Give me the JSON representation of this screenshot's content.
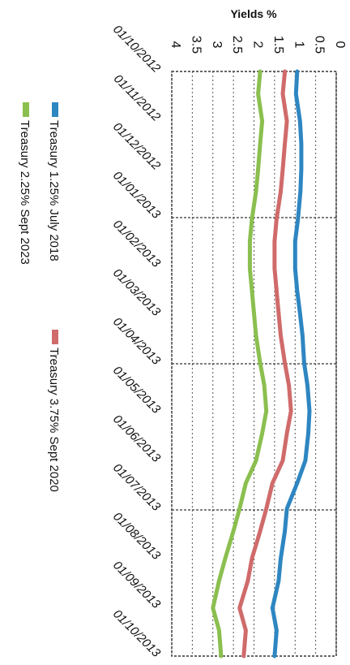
{
  "chart_data": {
    "type": "line",
    "orientation": "rotated-90-clockwise",
    "ylabel": "Yields %",
    "ylim": [
      0,
      4
    ],
    "y_ticks": [
      "0",
      "0.5",
      "1",
      "1.5",
      "2",
      "2.5",
      "3",
      "3.5",
      "4"
    ],
    "x_ticks": [
      "01/10/2012",
      "01/11/2012",
      "01/12/2012",
      "01/01/2013",
      "01/02/2013",
      "01/03/2013",
      "01/04/2013",
      "01/05/2013",
      "01/06/2013",
      "01/07/2013",
      "01/08/2013",
      "01/09/2013",
      "01/10/2013"
    ],
    "grid": "dashed",
    "legend_placement": "left",
    "series": [
      {
        "name": "Treasury 1.25% July 2018",
        "color": "#2e86c1",
        "dates": [
          "2012-10-01",
          "2012-10-15",
          "2012-11-01",
          "2012-11-15",
          "2012-12-01",
          "2012-12-15",
          "2013-01-01",
          "2013-01-15",
          "2013-02-01",
          "2013-02-15",
          "2013-03-01",
          "2013-03-15",
          "2013-04-01",
          "2013-04-15",
          "2013-05-01",
          "2013-05-15",
          "2013-06-01",
          "2013-06-15",
          "2013-07-01",
          "2013-07-15",
          "2013-08-01",
          "2013-08-15",
          "2013-09-01",
          "2013-09-15",
          "2013-10-01"
        ],
        "values": [
          0.95,
          0.98,
          0.88,
          0.85,
          0.85,
          0.87,
          0.93,
          1.0,
          1.0,
          0.95,
          0.88,
          0.82,
          0.78,
          0.7,
          0.65,
          0.68,
          0.75,
          0.95,
          1.2,
          1.25,
          1.35,
          1.4,
          1.55,
          1.45,
          1.5
        ]
      },
      {
        "name": "Treasury 3.75% Sept 2020",
        "color": "#d06b6b",
        "dates": [
          "2012-10-01",
          "2012-10-15",
          "2012-11-01",
          "2012-11-15",
          "2012-12-01",
          "2012-12-15",
          "2013-01-01",
          "2013-01-15",
          "2013-02-01",
          "2013-02-15",
          "2013-03-01",
          "2013-03-15",
          "2013-04-01",
          "2013-04-15",
          "2013-05-01",
          "2013-05-15",
          "2013-06-01",
          "2013-06-15",
          "2013-07-01",
          "2013-07-15",
          "2013-08-01",
          "2013-08-15",
          "2013-09-01",
          "2013-09-15",
          "2013-10-01"
        ],
        "values": [
          1.25,
          1.3,
          1.2,
          1.25,
          1.3,
          1.35,
          1.45,
          1.5,
          1.5,
          1.45,
          1.4,
          1.35,
          1.25,
          1.15,
          1.1,
          1.2,
          1.3,
          1.55,
          1.7,
          1.85,
          2.05,
          2.15,
          2.35,
          2.2,
          2.25
        ]
      },
      {
        "name": "Treasury 2.25% Sept 2023",
        "color": "#8bbf4f",
        "dates": [
          "2012-10-01",
          "2012-10-15",
          "2012-11-01",
          "2012-11-15",
          "2012-12-01",
          "2012-12-15",
          "2013-01-01",
          "2013-01-15",
          "2013-02-01",
          "2013-02-15",
          "2013-03-01",
          "2013-03-15",
          "2013-04-01",
          "2013-04-15",
          "2013-05-01",
          "2013-05-15",
          "2013-06-01",
          "2013-06-15",
          "2013-07-01",
          "2013-07-15",
          "2013-08-01",
          "2013-08-15",
          "2013-09-01",
          "2013-09-15",
          "2013-10-01"
        ],
        "values": [
          1.85,
          1.9,
          1.8,
          1.85,
          1.9,
          1.95,
          2.05,
          2.1,
          2.1,
          2.05,
          2.0,
          1.95,
          1.85,
          1.75,
          1.7,
          1.8,
          1.95,
          2.2,
          2.35,
          2.5,
          2.7,
          2.85,
          3.0,
          2.85,
          2.8
        ]
      }
    ]
  }
}
